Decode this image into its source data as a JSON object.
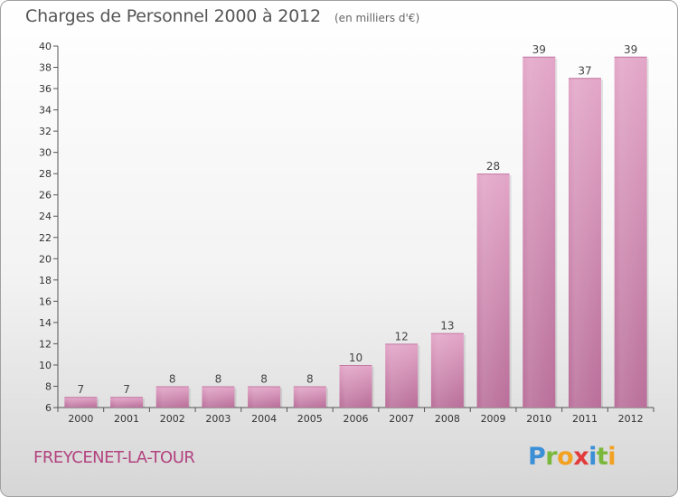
{
  "chart_data": {
    "type": "bar",
    "title": "Charges de Personnel 2000 à 2012",
    "subtitle": "(en milliers d'€)",
    "categories": [
      "2000",
      "2001",
      "2002",
      "2003",
      "2004",
      "2005",
      "2006",
      "2007",
      "2008",
      "2009",
      "2010",
      "2011",
      "2012"
    ],
    "values": [
      7,
      7,
      8,
      8,
      8,
      8,
      10,
      12,
      13,
      28,
      39,
      37,
      39
    ],
    "ylim": [
      6,
      40
    ],
    "yticks": [
      6,
      8,
      10,
      12,
      14,
      16,
      18,
      20,
      22,
      24,
      26,
      28,
      30,
      32,
      34,
      36,
      38,
      40
    ],
    "grid": false,
    "bar_color": "#d987b4"
  },
  "commune": "FREYCENET-LA-TOUR",
  "logo": {
    "letters": [
      "P",
      "r",
      "o",
      "x",
      "i",
      "t",
      "i"
    ],
    "colors": [
      "#3b8fd6",
      "#7ab83b",
      "#f2a120",
      "#e23b3b",
      "#3b8fd6",
      "#7ab83b",
      "#f2a120"
    ]
  }
}
